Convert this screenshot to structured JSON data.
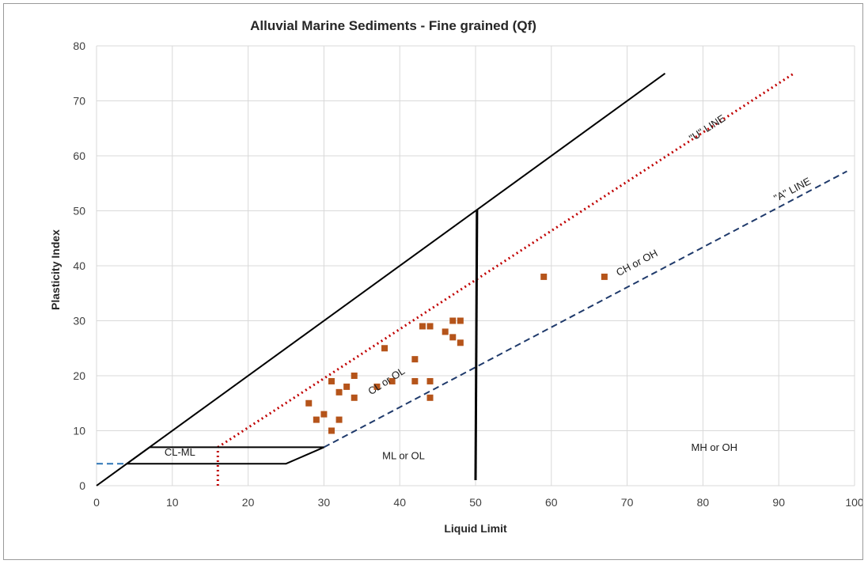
{
  "chart_data": {
    "type": "scatter",
    "title": "Alluvial Marine Sediments - Fine grained (Qf)",
    "xlabel": "Liquid Limit",
    "ylabel": "Plasticity Index",
    "xlim": [
      0,
      100
    ],
    "ylim": [
      0,
      80
    ],
    "x_ticks": [
      0,
      10,
      20,
      30,
      40,
      50,
      60,
      70,
      80,
      90,
      100
    ],
    "y_ticks": [
      0,
      10,
      20,
      30,
      40,
      50,
      60,
      70,
      80
    ],
    "grid": true,
    "legend": "none",
    "series": [
      {
        "marker": "square",
        "color": "#b5541a",
        "points": [
          [
            28,
            15
          ],
          [
            29,
            12
          ],
          [
            30,
            13
          ],
          [
            31,
            19
          ],
          [
            31,
            10
          ],
          [
            32,
            17
          ],
          [
            32,
            12
          ],
          [
            33,
            18
          ],
          [
            34,
            20
          ],
          [
            34,
            16
          ],
          [
            37,
            18
          ],
          [
            38,
            25
          ],
          [
            39,
            19
          ],
          [
            42,
            23
          ],
          [
            42,
            19
          ],
          [
            43,
            29
          ],
          [
            44,
            29
          ],
          [
            44,
            19
          ],
          [
            44,
            16
          ],
          [
            46,
            28
          ],
          [
            47,
            30
          ],
          [
            47,
            27
          ],
          [
            48,
            30
          ],
          [
            48,
            26
          ],
          [
            59,
            38
          ],
          [
            67,
            38
          ]
        ]
      }
    ],
    "reference_lines": [
      {
        "kind": "upper-limit",
        "color": "#000000",
        "style": "solid",
        "points": [
          [
            0,
            0
          ],
          [
            75,
            75
          ]
        ]
      },
      {
        "kind": "u-line",
        "color": "#c00000",
        "style": "dotted",
        "points": [
          [
            16,
            7
          ],
          [
            92,
            75
          ]
        ]
      },
      {
        "kind": "u-line-vertical",
        "color": "#c00000",
        "style": "dotted",
        "points": [
          [
            16,
            0
          ],
          [
            16,
            7
          ]
        ]
      },
      {
        "kind": "a-line",
        "color": "#1f3a6b",
        "style": "dashed",
        "points": [
          [
            30,
            7
          ],
          [
            99,
            57.2
          ]
        ]
      },
      {
        "kind": "a-line-extension",
        "color": "#2e75b6",
        "style": "dashed",
        "points": [
          [
            0,
            4
          ],
          [
            4,
            4
          ]
        ]
      },
      {
        "kind": "ll-50",
        "color": "#000000",
        "style": "solid-thick",
        "points": [
          [
            50.2,
            50.2
          ],
          [
            50,
            1
          ]
        ]
      },
      {
        "kind": "cl-ml-zone",
        "color": "#000000",
        "style": "solid",
        "points": [
          [
            7,
            7
          ],
          [
            30,
            7
          ],
          [
            25,
            4
          ],
          [
            4,
            4
          ],
          [
            7,
            7
          ]
        ]
      }
    ],
    "annotations": [
      {
        "text": "CL-ML",
        "x": 11,
        "y": 5.5,
        "rotate": false
      },
      {
        "text": "ML or OL",
        "x": 40.5,
        "y": 4.8,
        "rotate": false
      },
      {
        "text": "MH or OH",
        "x": 81.5,
        "y": 6.3,
        "rotate": false
      },
      {
        "text": "CL or OL",
        "x": 38.5,
        "y": 18.5,
        "rotate": true
      },
      {
        "text": "CH or OH",
        "x": 71.5,
        "y": 40,
        "rotate": true
      },
      {
        "text": "\"U\" LINE",
        "x": 80.8,
        "y": 64.5,
        "rotate": true
      },
      {
        "text": "\"A\" LINE",
        "x": 92,
        "y": 53.3,
        "rotate": true
      }
    ]
  }
}
